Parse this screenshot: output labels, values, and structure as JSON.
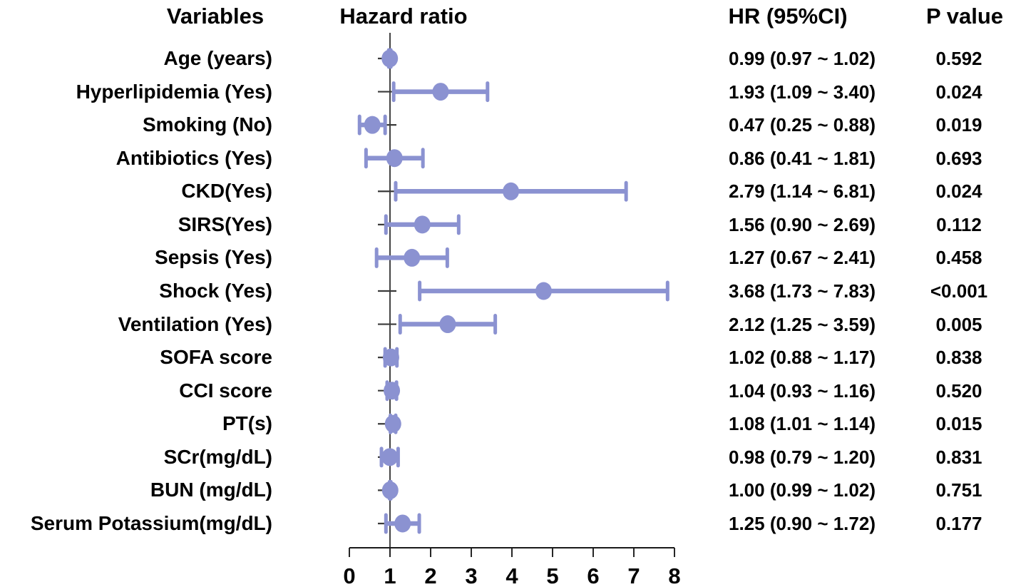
{
  "headers": {
    "variables": "Variables",
    "hazard_ratio": "Hazard ratio",
    "hr_ci": "HR (95%CI)",
    "p_value": "P value"
  },
  "colors": {
    "marker": "#8b92d1",
    "reference_line": "#3a3a3a",
    "axis": "#1a1a1a",
    "text": "#000000",
    "background": "#ffffff"
  },
  "chart_data": {
    "type": "scatter",
    "variant": "forest-plot",
    "xlabel": "",
    "ylabel": "",
    "xlim": [
      0,
      8
    ],
    "x_ticks": [
      0,
      1,
      2,
      3,
      4,
      5,
      6,
      7,
      8
    ],
    "reference_line_x": 1,
    "grid": false,
    "legend": "none",
    "rows": [
      {
        "variable": "Age (years)",
        "hr": 0.99,
        "ci_low": 0.97,
        "ci_high": 1.02,
        "hr_ci": "0.99 (0.97 ~ 1.02)",
        "p": "0.592"
      },
      {
        "variable": "Hyperlipidemia (Yes)",
        "hr": 1.93,
        "ci_low": 1.09,
        "ci_high": 3.4,
        "hr_ci": "1.93 (1.09 ~ 3.40)",
        "p": "0.024"
      },
      {
        "variable": "Smoking (No)",
        "hr": 0.47,
        "ci_low": 0.25,
        "ci_high": 0.88,
        "hr_ci": "0.47 (0.25 ~ 0.88)",
        "p": "0.019"
      },
      {
        "variable": "Antibiotics (Yes)",
        "hr": 0.86,
        "ci_low": 0.41,
        "ci_high": 1.81,
        "hr_ci": "0.86 (0.41 ~ 1.81)",
        "p": "0.693"
      },
      {
        "variable": "CKD(Yes)",
        "hr": 2.79,
        "ci_low": 1.14,
        "ci_high": 6.81,
        "hr_ci": "2.79 (1.14 ~ 6.81)",
        "p": "0.024"
      },
      {
        "variable": "SIRS(Yes)",
        "hr": 1.56,
        "ci_low": 0.9,
        "ci_high": 2.69,
        "hr_ci": "1.56 (0.90 ~ 2.69)",
        "p": "0.112"
      },
      {
        "variable": "Sepsis (Yes)",
        "hr": 1.27,
        "ci_low": 0.67,
        "ci_high": 2.41,
        "hr_ci": "1.27 (0.67 ~ 2.41)",
        "p": "0.458"
      },
      {
        "variable": "Shock (Yes)",
        "hr": 3.68,
        "ci_low": 1.73,
        "ci_high": 7.83,
        "hr_ci": "3.68 (1.73 ~ 7.83)",
        "p": "<0.001"
      },
      {
        "variable": "Ventilation (Yes)",
        "hr": 2.12,
        "ci_low": 1.25,
        "ci_high": 3.59,
        "hr_ci": "2.12 (1.25 ~ 3.59)",
        "p": "0.005"
      },
      {
        "variable": "SOFA score",
        "hr": 1.02,
        "ci_low": 0.88,
        "ci_high": 1.17,
        "hr_ci": "1.02 (0.88 ~ 1.17)",
        "p": "0.838"
      },
      {
        "variable": "CCI score",
        "hr": 1.04,
        "ci_low": 0.93,
        "ci_high": 1.16,
        "hr_ci": "1.04 (0.93 ~ 1.16)",
        "p": "0.520"
      },
      {
        "variable": "PT(s)",
        "hr": 1.08,
        "ci_low": 1.01,
        "ci_high": 1.14,
        "hr_ci": "1.08 (1.01 ~ 1.14)",
        "p": "0.015"
      },
      {
        "variable": "SCr(mg/dL)",
        "hr": 0.98,
        "ci_low": 0.79,
        "ci_high": 1.2,
        "hr_ci": "0.98 (0.79 ~ 1.20)",
        "p": "0.831"
      },
      {
        "variable": "BUN (mg/dL)",
        "hr": 1.0,
        "ci_low": 0.99,
        "ci_high": 1.02,
        "hr_ci": "1.00 (0.99 ~ 1.02)",
        "p": "0.751"
      },
      {
        "variable": "Serum Potassium(mg/dL)",
        "hr": 1.25,
        "ci_low": 0.9,
        "ci_high": 1.72,
        "hr_ci": "1.25 (0.90 ~ 1.72)",
        "p": "0.177"
      }
    ]
  }
}
